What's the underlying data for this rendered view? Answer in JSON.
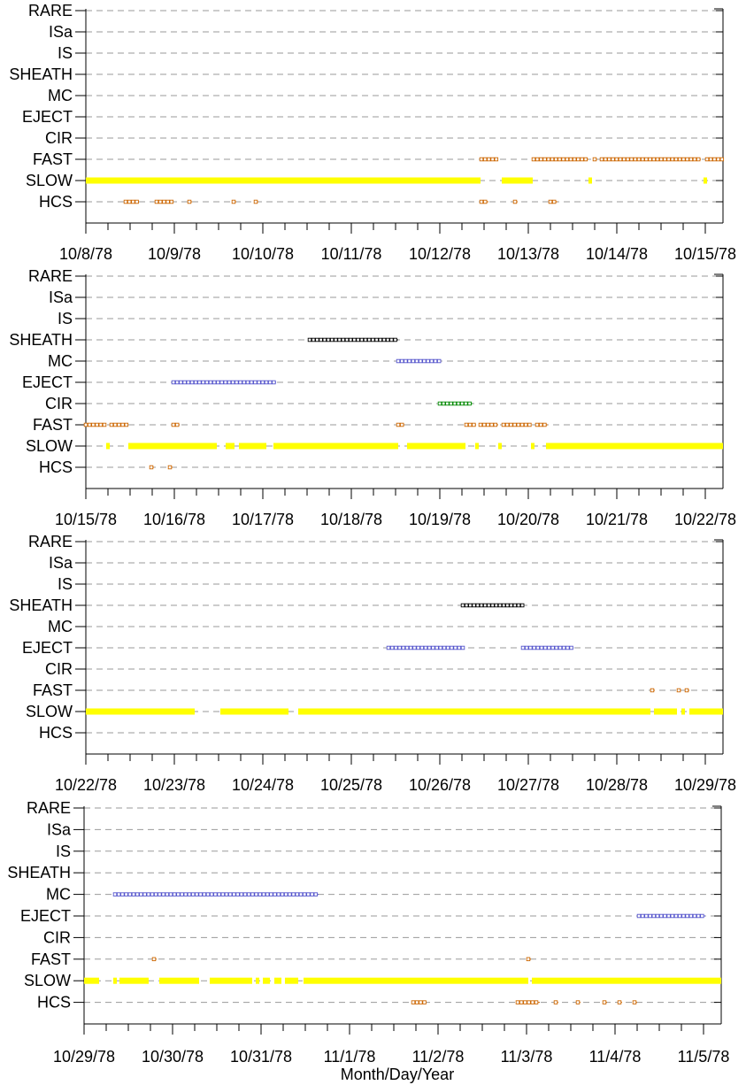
{
  "xlabel": "Month/Day/Year",
  "categories": [
    "RARE",
    "ISa",
    "IS",
    "SHEATH",
    "MC",
    "EJECT",
    "CIR",
    "FAST",
    "SLOW",
    "HCS"
  ],
  "colors": {
    "SLOW": "#ffff00",
    "FAST": "#cc6600",
    "HCS": "#cc6600",
    "EJECT": "#5555cc",
    "MC": "#5555cc",
    "SHEATH": "#000000",
    "CIR": "#008800"
  },
  "chart_data": [
    {
      "type": "scatter",
      "xlabel": "",
      "x_ticks": [
        "10/8/78",
        "10/9/78",
        "10/10/78",
        "10/11/78",
        "10/12/78",
        "10/13/78",
        "10/14/78",
        "10/15/78"
      ],
      "xlim": [
        0,
        7.2
      ],
      "series": [
        {
          "name": "SLOW",
          "intervals": [
            [
              0,
              4.46
            ],
            [
              4.7,
              5.05
            ],
            [
              5.68,
              5.71
            ],
            [
              6.98,
              7.02
            ]
          ]
        },
        {
          "name": "FAST",
          "intervals": [
            [
              4.47,
              4.66
            ],
            [
              5.06,
              5.68
            ],
            [
              5.75,
              5.78
            ],
            [
              5.83,
              6.95
            ],
            [
              7.02,
              7.2
            ]
          ]
        },
        {
          "name": "HCS",
          "intervals": [
            [
              0.45,
              0.6
            ],
            [
              0.8,
              0.98
            ],
            [
              1.17,
              1.19
            ],
            [
              1.67,
              1.69
            ],
            [
              1.92,
              1.94
            ],
            [
              4.47,
              4.55
            ],
            [
              4.85,
              4.87
            ],
            [
              5.25,
              5.33
            ]
          ]
        }
      ]
    },
    {
      "type": "scatter",
      "xlabel": "",
      "x_ticks": [
        "10/15/78",
        "10/16/78",
        "10/17/78",
        "10/18/78",
        "10/19/78",
        "10/20/78",
        "10/21/78",
        "10/22/78"
      ],
      "xlim": [
        0,
        7.2
      ],
      "series": [
        {
          "name": "SLOW",
          "intervals": [
            [
              0.23,
              0.27
            ],
            [
              0.48,
              1.08
            ],
            [
              1.08,
              1.48
            ],
            [
              1.58,
              1.68
            ],
            [
              1.73,
              2.04
            ],
            [
              2.12,
              3.53
            ],
            [
              3.63,
              4.29
            ],
            [
              4.4,
              4.44
            ],
            [
              4.66,
              4.7
            ],
            [
              5.03,
              5.07
            ],
            [
              5.2,
              7.2
            ]
          ]
        },
        {
          "name": "FAST",
          "intervals": [
            [
              0,
              0.23
            ],
            [
              0.29,
              0.48
            ],
            [
              0.99,
              1.06
            ],
            [
              3.53,
              3.6
            ],
            [
              4.3,
              4.41
            ],
            [
              4.46,
              4.66
            ],
            [
              4.72,
              5.03
            ],
            [
              5.1,
              5.22
            ]
          ]
        },
        {
          "name": "HCS",
          "intervals": [
            [
              0.74,
              0.76
            ],
            [
              0.95,
              0.97
            ]
          ]
        },
        {
          "name": "EJECT",
          "intervals": [
            [
              0.99,
              2.15
            ]
          ]
        },
        {
          "name": "SHEATH",
          "intervals": [
            [
              2.53,
              3.53
            ]
          ]
        },
        {
          "name": "MC",
          "intervals": [
            [
              3.53,
              4.0
            ]
          ]
        },
        {
          "name": "CIR",
          "intervals": [
            [
              4.0,
              4.37
            ]
          ]
        }
      ]
    },
    {
      "type": "scatter",
      "xlabel": "",
      "x_ticks": [
        "10/22/78",
        "10/23/78",
        "10/24/78",
        "10/25/78",
        "10/26/78",
        "10/27/78",
        "10/28/78",
        "10/29/78"
      ],
      "xlim": [
        0,
        7.2
      ],
      "series": [
        {
          "name": "SLOW",
          "intervals": [
            [
              0,
              1.23
            ],
            [
              1.52,
              2.29
            ],
            [
              2.4,
              6.38
            ],
            [
              6.42,
              6.68
            ],
            [
              6.73,
              6.76
            ],
            [
              6.82,
              7.2
            ]
          ]
        },
        {
          "name": "FAST",
          "intervals": [
            [
              6.4,
              6.42
            ],
            [
              6.7,
              6.72
            ],
            [
              6.79,
              6.81
            ]
          ]
        },
        {
          "name": "EJECT",
          "intervals": [
            [
              3.42,
              4.26
            ],
            [
              4.94,
              5.51
            ]
          ]
        },
        {
          "name": "SHEATH",
          "intervals": [
            [
              4.26,
              4.94
            ]
          ]
        }
      ]
    },
    {
      "type": "scatter",
      "xlabel": "Month/Day/Year",
      "x_ticks": [
        "10/29/78",
        "10/30/78",
        "10/31/78",
        "11/1/78",
        "11/2/78",
        "11/3/78",
        "11/4/78",
        "11/5/78"
      ],
      "xlim": [
        0,
        7.2
      ],
      "series": [
        {
          "name": "SLOW",
          "intervals": [
            [
              0,
              0.17
            ],
            [
              0.33,
              0.37
            ],
            [
              0.4,
              0.73
            ],
            [
              0.85,
              1.3
            ],
            [
              1.42,
              1.9
            ],
            [
              1.94,
              1.98
            ],
            [
              2.02,
              2.1
            ],
            [
              2.15,
              2.23
            ],
            [
              2.27,
              2.42
            ],
            [
              2.48,
              5.02
            ],
            [
              5.06,
              7.2
            ]
          ]
        },
        {
          "name": "FAST",
          "intervals": [
            [
              0.79,
              0.81
            ],
            [
              5.02,
              5.04
            ]
          ]
        },
        {
          "name": "HCS",
          "intervals": [
            [
              3.72,
              3.85
            ],
            [
              4.9,
              5.15
            ],
            [
              5.33,
              5.35
            ],
            [
              5.58,
              5.6
            ],
            [
              5.88,
              5.9
            ],
            [
              6.05,
              6.07
            ],
            [
              6.22,
              6.24
            ]
          ]
        },
        {
          "name": "MC",
          "intervals": [
            [
              0.35,
              2.65
            ]
          ]
        },
        {
          "name": "EJECT",
          "intervals": [
            [
              6.27,
              7.02
            ]
          ]
        }
      ]
    }
  ]
}
